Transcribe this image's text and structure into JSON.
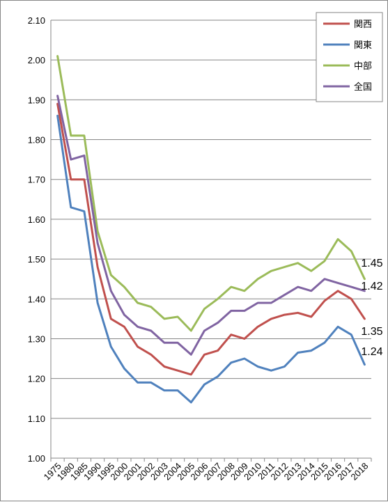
{
  "chart_data": {
    "type": "line",
    "title": "",
    "xlabel": "",
    "ylabel": "",
    "ylim": [
      1.0,
      2.1
    ],
    "y_ticks": [
      "1.00",
      "1.10",
      "1.20",
      "1.30",
      "1.40",
      "1.50",
      "1.60",
      "1.70",
      "1.80",
      "1.90",
      "2.00",
      "2.10"
    ],
    "categories": [
      "1975",
      "1980",
      "1985",
      "1990",
      "1995",
      "2000",
      "2001",
      "2002",
      "2003",
      "2004",
      "2005",
      "2006",
      "2007",
      "2008",
      "2009",
      "2010",
      "2011",
      "2012",
      "2013",
      "2014",
      "2015",
      "2016",
      "2017",
      "2018"
    ],
    "grid": true,
    "legend_position": "top-right",
    "series": [
      {
        "name": "関西",
        "color": "#C0504D",
        "values": [
          1.89,
          1.7,
          1.7,
          1.48,
          1.35,
          1.33,
          1.28,
          1.26,
          1.23,
          1.22,
          1.21,
          1.26,
          1.27,
          1.31,
          1.3,
          1.33,
          1.35,
          1.36,
          1.365,
          1.355,
          1.395,
          1.42,
          1.4,
          1.35
        ]
      },
      {
        "name": "関東",
        "color": "#4F81BD",
        "values": [
          1.86,
          1.63,
          1.62,
          1.39,
          1.28,
          1.225,
          1.19,
          1.19,
          1.17,
          1.17,
          1.14,
          1.185,
          1.205,
          1.24,
          1.25,
          1.23,
          1.22,
          1.23,
          1.265,
          1.27,
          1.29,
          1.33,
          1.31,
          1.235
        ]
      },
      {
        "name": "中部",
        "color": "#9BBB59",
        "values": [
          2.01,
          1.81,
          1.81,
          1.57,
          1.46,
          1.43,
          1.39,
          1.38,
          1.35,
          1.355,
          1.32,
          1.375,
          1.4,
          1.43,
          1.42,
          1.45,
          1.47,
          1.48,
          1.49,
          1.47,
          1.495,
          1.55,
          1.52,
          1.45
        ]
      },
      {
        "name": "全国",
        "color": "#8064A2",
        "values": [
          1.91,
          1.75,
          1.76,
          1.54,
          1.42,
          1.36,
          1.33,
          1.32,
          1.29,
          1.29,
          1.26,
          1.32,
          1.34,
          1.37,
          1.37,
          1.39,
          1.39,
          1.41,
          1.43,
          1.42,
          1.45,
          1.44,
          1.43,
          1.42
        ]
      }
    ],
    "end_labels": [
      "1.45",
      "1.42",
      "1.35",
      "1.24"
    ]
  }
}
